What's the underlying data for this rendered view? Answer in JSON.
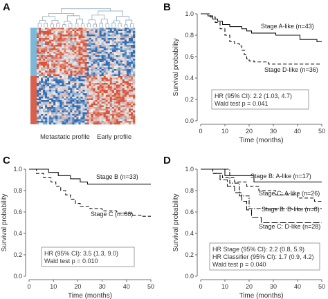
{
  "figure": {
    "panels": {
      "A": {
        "letter": "A",
        "left_label": "Metastatic profile",
        "right_label": "Early profile",
        "sidebar_colors": [
          "#7db7d9",
          "#d9604c"
        ],
        "heat_colors": {
          "low": "#2f6db5",
          "mid": "#f4f0ec",
          "high": "#d8553a"
        }
      },
      "B": {
        "letter": "B",
        "ylabel": "Survival probability",
        "xlabel": "Time (months)",
        "stats": [
          "HR (95% CI): 2.2 (1.03, 4.7)",
          "Wald test p = 0.041"
        ]
      },
      "C": {
        "letter": "C",
        "ylabel": "Survival probability",
        "xlabel": "Time (months)",
        "stats": [
          "HR (95% CI): 3.5 (1.3, 9.0)",
          "Wald test p = 0.010"
        ]
      },
      "D": {
        "letter": "D",
        "ylabel": "Survival probability",
        "xlabel": "Time (months)",
        "stats": [
          "HR Stage (95% CI): 2.2 (0.8, 5.9)",
          "HR Classifier (95% CI): 1.7 (0.9, 4.2)",
          "Wald test p = 0.040"
        ]
      }
    }
  },
  "chart_data": [
    {
      "panel": "B",
      "type": "line",
      "xlabel": "Time (months)",
      "ylabel": "Survival probability",
      "xlim": [
        0,
        50
      ],
      "ylim": [
        0,
        1.0
      ],
      "xticks": [
        0,
        10,
        20,
        30,
        40,
        50
      ],
      "yticks": [
        0.0,
        0.2,
        0.4,
        0.6,
        0.8,
        1.0
      ],
      "series": [
        {
          "name": "Stage A-like (n=43)",
          "style": "solid",
          "x": [
            0,
            3,
            5,
            7,
            9,
            12,
            17,
            19,
            21,
            31,
            41,
            48,
            50
          ],
          "y": [
            1.0,
            0.98,
            0.95,
            0.93,
            0.9,
            0.88,
            0.86,
            0.84,
            0.82,
            0.8,
            0.76,
            0.74,
            0.74
          ]
        },
        {
          "name": "Stage D-like (n=36)",
          "style": "dashed",
          "x": [
            0,
            4,
            6,
            8,
            10,
            12,
            14,
            16,
            17,
            18,
            19,
            20,
            22,
            28,
            50
          ],
          "y": [
            1.0,
            0.97,
            0.92,
            0.86,
            0.8,
            0.74,
            0.72,
            0.7,
            0.66,
            0.62,
            0.58,
            0.56,
            0.55,
            0.53,
            0.53
          ]
        }
      ],
      "ylim_labels": [
        "0.0",
        "0.2",
        "0.4",
        "0.6",
        "0.8",
        "1.0"
      ]
    },
    {
      "panel": "C",
      "type": "line",
      "xlabel": "Time (months)",
      "ylabel": "Survival probability",
      "xlim": [
        0,
        50
      ],
      "ylim": [
        0,
        1.0
      ],
      "xticks": [
        0,
        10,
        20,
        30,
        40,
        50
      ],
      "yticks": [
        0.0,
        0.2,
        0.4,
        0.6,
        0.8,
        1.0
      ],
      "series": [
        {
          "name": "Stage B (n=33)",
          "style": "solid",
          "x": [
            0,
            8,
            12,
            17,
            21,
            24,
            50
          ],
          "y": [
            1.0,
            0.97,
            0.94,
            0.91,
            0.88,
            0.86,
            0.86
          ]
        },
        {
          "name": "Stage C (n=66)",
          "style": "dashed",
          "x": [
            0,
            3,
            6,
            9,
            11,
            13,
            15,
            17,
            19,
            21,
            25,
            30,
            36,
            42,
            46,
            50
          ],
          "y": [
            1.0,
            0.96,
            0.92,
            0.88,
            0.84,
            0.8,
            0.76,
            0.72,
            0.68,
            0.65,
            0.63,
            0.61,
            0.59,
            0.57,
            0.56,
            0.56
          ]
        }
      ]
    },
    {
      "panel": "D",
      "type": "line",
      "xlabel": "Time (months)",
      "ylabel": "Survival probability",
      "xlim": [
        0,
        50
      ],
      "ylim": [
        0,
        1.0
      ],
      "xticks": [
        0,
        10,
        20,
        30,
        40,
        50
      ],
      "yticks": [
        0.0,
        0.2,
        0.4,
        0.6,
        0.8,
        1.0
      ],
      "series": [
        {
          "name": "Stage B: A-like (n=17)",
          "style": "solid",
          "x": [
            0,
            10,
            22,
            50
          ],
          "y": [
            1.0,
            0.94,
            0.88,
            0.88
          ]
        },
        {
          "name": "Stage C: A-like (n=26)",
          "style": "dashed",
          "x": [
            0,
            5,
            9,
            14,
            19,
            24,
            31,
            40,
            47,
            50
          ],
          "y": [
            1.0,
            0.96,
            0.92,
            0.88,
            0.84,
            0.8,
            0.76,
            0.73,
            0.7,
            0.7
          ]
        },
        {
          "name": "Stage B: D-like (n=8)",
          "style": "dashdot",
          "x": [
            0,
            12,
            16,
            20,
            50
          ],
          "y": [
            1.0,
            0.87,
            0.75,
            0.63,
            0.63
          ]
        },
        {
          "name": "Stage C: D-like (n=28)",
          "style": "longdash",
          "x": [
            0,
            5,
            8,
            11,
            14,
            17,
            19,
            21,
            25,
            50
          ],
          "y": [
            1.0,
            0.96,
            0.9,
            0.84,
            0.78,
            0.7,
            0.62,
            0.55,
            0.5,
            0.5
          ]
        }
      ]
    }
  ]
}
